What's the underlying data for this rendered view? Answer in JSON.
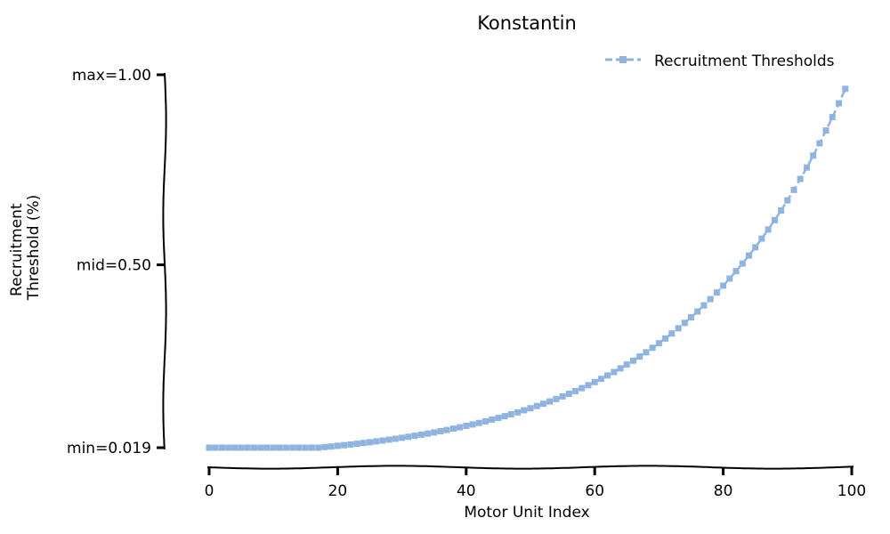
{
  "chart_data": {
    "type": "line",
    "title": "Konstantin",
    "xlabel": "Motor Unit Index",
    "ylabel": "Recruitment Threshold (%)",
    "ylabel_lines": [
      "Recruitment",
      "Threshold (%)"
    ],
    "xlim": [
      0,
      100
    ],
    "ylim": [
      0.019,
      1.0
    ],
    "x_ticks": [
      0,
      20,
      40,
      60,
      80,
      100
    ],
    "x_tick_labels": [
      "0",
      "20",
      "40",
      "60",
      "80",
      "100"
    ],
    "y_ticks": [
      0.019,
      0.5,
      1.0
    ],
    "y_tick_labels": [
      "min=0.019",
      "mid=0.50",
      "max=1.00"
    ],
    "grid": false,
    "legend_position": "top-right",
    "series": [
      {
        "name": "Recruitment Thresholds",
        "color": "#8fb4df",
        "style": "dashed-square-markers",
        "x_start": 0,
        "x_end": 99,
        "x_step": 1,
        "y_first": 0.0,
        "y_last": 0.963,
        "growth": "exponential"
      }
    ]
  }
}
